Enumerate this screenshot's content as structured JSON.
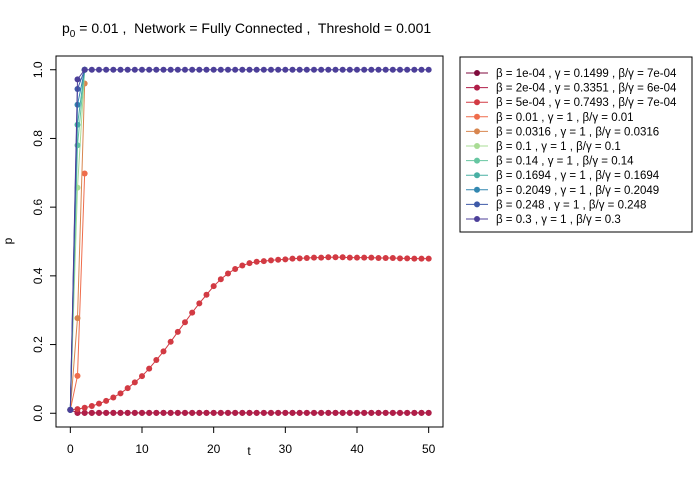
{
  "chart_data": {
    "type": "line",
    "title_parts": {
      "p_main": "p",
      "p_sub": "0",
      "rest": " = 0.01 ,  Network = Fully Connected ,  Threshold = 0.001"
    },
    "xlabel": "t",
    "ylabel": "p",
    "xlim": [
      -2,
      52
    ],
    "ylim": [
      -0.04,
      1.04
    ],
    "xticks": [
      0,
      10,
      20,
      30,
      40,
      50
    ],
    "yticks": [
      0.0,
      0.2,
      0.4,
      0.6,
      0.8,
      1.0
    ],
    "ytick_labels": [
      "0.0",
      "0.2",
      "0.4",
      "0.6",
      "0.8",
      "1.0"
    ],
    "grid": false,
    "legend_position": "top-right outside",
    "series": [
      {
        "label_beta": "1e-04",
        "label_gamma": "0.1499",
        "label_ratio": "7e-04",
        "color": "#7f0a3c",
        "x": [
          0,
          1,
          2,
          3,
          4,
          5,
          6,
          7,
          8,
          9,
          10,
          11,
          12,
          13,
          14,
          15,
          16,
          17,
          18,
          19,
          20,
          21,
          22,
          23,
          24,
          25,
          26,
          27,
          28,
          29,
          30,
          31,
          32,
          33,
          34,
          35,
          36,
          37,
          38,
          39,
          40,
          41,
          42,
          43,
          44,
          45,
          46,
          47,
          48,
          49,
          50
        ],
        "y": [
          0.01,
          0.001,
          0.001,
          0.001,
          0.001,
          0.001,
          0.001,
          0.001,
          0.001,
          0.001,
          0.001,
          0.001,
          0.001,
          0.001,
          0.001,
          0.001,
          0.001,
          0.001,
          0.001,
          0.001,
          0.001,
          0.001,
          0.001,
          0.001,
          0.001,
          0.001,
          0.001,
          0.001,
          0.001,
          0.001,
          0.001,
          0.001,
          0.001,
          0.001,
          0.001,
          0.001,
          0.001,
          0.001,
          0.001,
          0.001,
          0.001,
          0.001,
          0.001,
          0.001,
          0.001,
          0.001,
          0.001,
          0.001,
          0.001,
          0.001,
          0.001
        ]
      },
      {
        "label_beta": "2e-04",
        "label_gamma": "0.3351",
        "label_ratio": "6e-04",
        "color": "#b01e48",
        "x": [
          0,
          1,
          2,
          3,
          4,
          5,
          6,
          7,
          8,
          9,
          10,
          11,
          12,
          13,
          14,
          15,
          16,
          17,
          18,
          19,
          20,
          21,
          22,
          23,
          24,
          25,
          26,
          27,
          28,
          29,
          30,
          31,
          32,
          33,
          34,
          35,
          36,
          37,
          38,
          39,
          40,
          41,
          42,
          43,
          44,
          45,
          46,
          47,
          48,
          49,
          50
        ],
        "y": [
          0.01,
          0.001,
          0.001,
          0.001,
          0.001,
          0.001,
          0.001,
          0.001,
          0.001,
          0.001,
          0.001,
          0.001,
          0.001,
          0.001,
          0.001,
          0.001,
          0.001,
          0.001,
          0.001,
          0.001,
          0.001,
          0.001,
          0.001,
          0.001,
          0.001,
          0.001,
          0.001,
          0.001,
          0.001,
          0.001,
          0.001,
          0.001,
          0.001,
          0.001,
          0.001,
          0.001,
          0.001,
          0.001,
          0.001,
          0.001,
          0.001,
          0.001,
          0.001,
          0.001,
          0.001,
          0.001,
          0.001,
          0.001,
          0.001,
          0.001,
          0.001
        ]
      },
      {
        "label_beta": "5e-04",
        "label_gamma": "0.7493",
        "label_ratio": "7e-04",
        "color": "#d23a43",
        "x": [
          0,
          1,
          2,
          3,
          4,
          5,
          6,
          7,
          8,
          9,
          10,
          11,
          12,
          13,
          14,
          15,
          16,
          17,
          18,
          19,
          20,
          21,
          22,
          23,
          24,
          25,
          26,
          27,
          28,
          29,
          30,
          31,
          32,
          33,
          34,
          35,
          36,
          37,
          38,
          39,
          40,
          41,
          42,
          43,
          44,
          45,
          46,
          47,
          48,
          49,
          50
        ],
        "y": [
          0.01,
          0.012,
          0.016,
          0.021,
          0.028,
          0.036,
          0.046,
          0.058,
          0.073,
          0.09,
          0.108,
          0.13,
          0.155,
          0.18,
          0.208,
          0.237,
          0.265,
          0.293,
          0.32,
          0.345,
          0.37,
          0.39,
          0.407,
          0.42,
          0.43,
          0.437,
          0.441,
          0.443,
          0.445,
          0.447,
          0.448,
          0.45,
          0.451,
          0.452,
          0.453,
          0.453,
          0.454,
          0.454,
          0.454,
          0.453,
          0.453,
          0.453,
          0.453,
          0.452,
          0.452,
          0.452,
          0.451,
          0.451,
          0.45,
          0.45,
          0.45
        ]
      },
      {
        "label_beta": "0.01",
        "label_gamma": "1",
        "label_ratio": "0.01",
        "color": "#ef6c4b",
        "x": [
          0,
          1,
          2
        ],
        "y": [
          0.01,
          0.109,
          0.698
        ]
      },
      {
        "label_beta": "0.0316",
        "label_gamma": "1",
        "label_ratio": "0.0316",
        "color": "#d8864f",
        "x": [
          0,
          1,
          2
        ],
        "y": [
          0.01,
          0.277,
          0.96
        ]
      },
      {
        "label_beta": "0.1",
        "label_gamma": "1",
        "label_ratio": "0.1",
        "color": "#a9dc95",
        "x": [
          0,
          1,
          2
        ],
        "y": [
          0.01,
          0.657,
          1.0
        ]
      },
      {
        "label_beta": "0.14",
        "label_gamma": "1",
        "label_ratio": "0.14",
        "color": "#66c6a1",
        "x": [
          0,
          1,
          2
        ],
        "y": [
          0.01,
          0.78,
          1.0
        ]
      },
      {
        "label_beta": "0.1694",
        "label_gamma": "1",
        "label_ratio": "0.1694",
        "color": "#48b0a4",
        "x": [
          0,
          1,
          2
        ],
        "y": [
          0.01,
          0.84,
          1.0
        ]
      },
      {
        "label_beta": "0.2049",
        "label_gamma": "1",
        "label_ratio": "0.2049",
        "color": "#3287b0",
        "x": [
          0,
          1,
          2
        ],
        "y": [
          0.01,
          0.898,
          1.0
        ]
      },
      {
        "label_beta": "0.248",
        "label_gamma": "1",
        "label_ratio": "0.248",
        "color": "#3e5aa8",
        "x": [
          0,
          1,
          2
        ],
        "y": [
          0.01,
          0.944,
          1.0
        ]
      },
      {
        "label_beta": "0.3",
        "label_gamma": "1",
        "label_ratio": "0.3",
        "color": "#4c3f99",
        "x": [
          0,
          1,
          2,
          3,
          4,
          5,
          6,
          7,
          8,
          9,
          10,
          11,
          12,
          13,
          14,
          15,
          16,
          17,
          18,
          19,
          20,
          21,
          22,
          23,
          24,
          25,
          26,
          27,
          28,
          29,
          30,
          31,
          32,
          33,
          34,
          35,
          36,
          37,
          38,
          39,
          40,
          41,
          42,
          43,
          44,
          45,
          46,
          47,
          48,
          49,
          50
        ],
        "y": [
          0.01,
          0.972,
          1.0,
          1.0,
          1.0,
          1.0,
          1.0,
          1.0,
          1.0,
          1.0,
          1.0,
          1.0,
          1.0,
          1.0,
          1.0,
          1.0,
          1.0,
          1.0,
          1.0,
          1.0,
          1.0,
          1.0,
          1.0,
          1.0,
          1.0,
          1.0,
          1.0,
          1.0,
          1.0,
          1.0,
          1.0,
          1.0,
          1.0,
          1.0,
          1.0,
          1.0,
          1.0,
          1.0,
          1.0,
          1.0,
          1.0,
          1.0,
          1.0,
          1.0,
          1.0,
          1.0,
          1.0,
          1.0,
          1.0,
          1.0,
          1.0
        ]
      }
    ]
  }
}
